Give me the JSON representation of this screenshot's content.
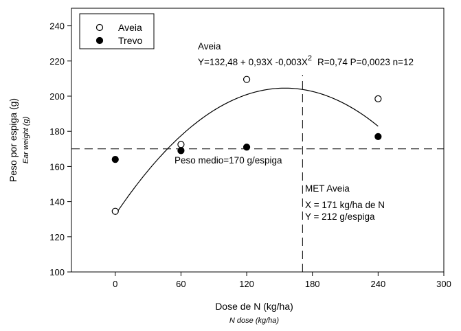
{
  "chart_data": {
    "type": "scatter",
    "xlabel": "Dose de N (kg/ha)",
    "xlabel_en": "N dose (kg/ha)",
    "ylabel": "Peso por espiga (g)",
    "ylabel_en": "Ear weight (g)",
    "xlim": [
      -40,
      300
    ],
    "ylim": [
      100,
      250
    ],
    "x_ticks": [
      0,
      60,
      120,
      180,
      240,
      300
    ],
    "y_ticks": [
      100,
      120,
      140,
      160,
      180,
      200,
      220,
      240
    ],
    "grid": false,
    "legend_position": "top-left",
    "series": [
      {
        "name": "Aveia",
        "marker": "open-circle",
        "x": [
          0,
          60,
          120,
          240
        ],
        "y": [
          134.5,
          172.5,
          209.5,
          198.5
        ]
      },
      {
        "name": "Trevo",
        "marker": "filled-circle",
        "x": [
          0,
          60,
          120,
          240
        ],
        "y": [
          164,
          169,
          171,
          177
        ]
      }
    ],
    "fit_curve": {
      "series": "Aveia",
      "a": 132.48,
      "b": 0.93,
      "c": -0.003,
      "x_range": [
        0,
        240
      ]
    },
    "reference_lines": {
      "horizontal_y": 170,
      "vertical_x": 171
    },
    "annotations": {
      "fit_title": "Aveia",
      "equation_main": "Y=132,48 + 0,93X -0,003X",
      "equation_exp": "2",
      "equation_stats": "R=0,74 P=0,0023 n=12",
      "mean_label": "Peso medio=170 g/espiga",
      "met_title": "MET Aveia",
      "met_x": "X = 171  kg/ha de N",
      "met_y": "Y = 212 g/espiga"
    }
  }
}
